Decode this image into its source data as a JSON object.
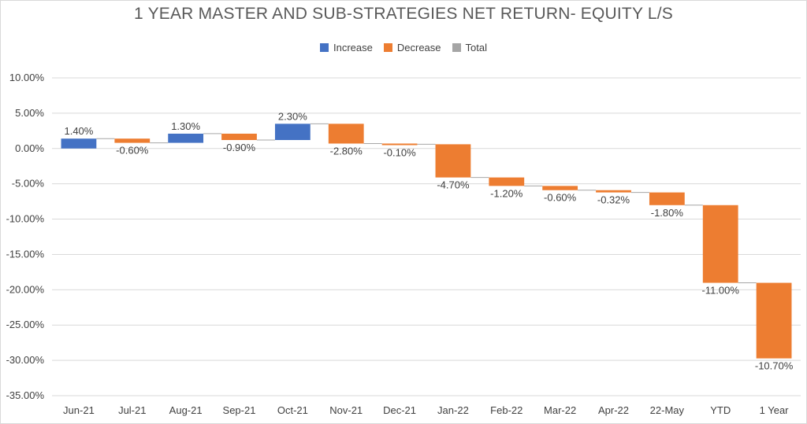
{
  "chart_data": {
    "type": "waterfall",
    "title": "1 YEAR MASTER AND SUB-STRATEGIES NET RETURN- EQUITY L/S",
    "legend": [
      {
        "name": "Increase",
        "color": "#4472c4"
      },
      {
        "name": "Decrease",
        "color": "#ed7d31"
      },
      {
        "name": "Total",
        "color": "#a5a5a5"
      }
    ],
    "legend_position": "top",
    "grid": true,
    "ylim": [
      -35,
      10
    ],
    "yticks": [
      10,
      5,
      0,
      -5,
      -10,
      -15,
      -20,
      -25,
      -30,
      -35
    ],
    "ytick_labels": [
      "10.00%",
      "5.00%",
      "0.00%",
      "-5.00%",
      "-10.00%",
      "-15.00%",
      "-20.00%",
      "-25.00%",
      "-30.00%",
      "-35.00%"
    ],
    "categories": [
      "Jun-21",
      "Jul-21",
      "Aug-21",
      "Sep-21",
      "Oct-21",
      "Nov-21",
      "Dec-21",
      "Jan-22",
      "Feb-22",
      "Mar-22",
      "Apr-22",
      "22-May",
      "YTD",
      "1 Year"
    ],
    "values": [
      1.4,
      -0.6,
      1.3,
      -0.9,
      2.3,
      -2.8,
      -0.1,
      -4.7,
      -1.2,
      -0.6,
      -0.32,
      -1.8,
      -11.0,
      -10.7
    ],
    "data_labels": [
      "1.40%",
      "-0.60%",
      "1.30%",
      "-0.90%",
      "2.30%",
      "-2.80%",
      "-0.10%",
      "-4.70%",
      "-1.20%",
      "-0.60%",
      "-0.32%",
      "-1.80%",
      "-11.00%",
      "-10.70%"
    ]
  }
}
